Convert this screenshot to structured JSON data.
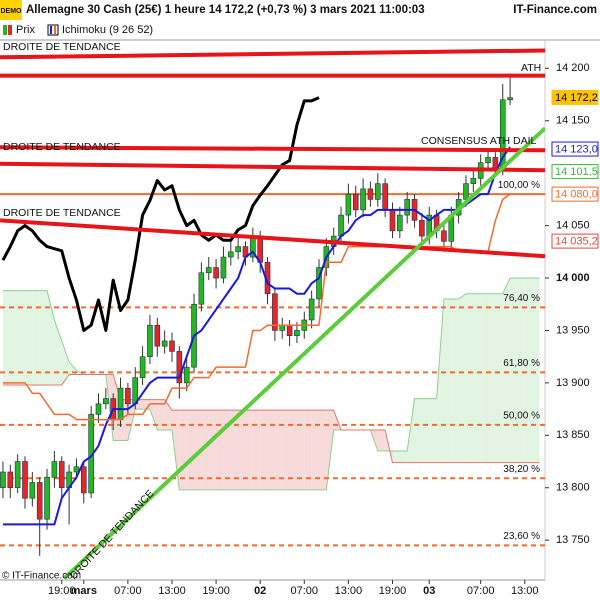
{
  "header": {
    "logo": "DEMO",
    "title": "Allemagne 30 Cash (25€) 1 heure 14 172,2 (+0,73 %) 3 mars 2021 11:00:03",
    "site": "IT-Finance.com"
  },
  "legend": [
    "Prix",
    "Ichimoku (9 26 52)"
  ],
  "chart_data": {
    "type": "candlestick",
    "candles": [
      [
        13800,
        13825,
        13790,
        13815
      ],
      [
        13815,
        13822,
        13790,
        13800
      ],
      [
        13800,
        13832,
        13795,
        13825
      ],
      [
        13825,
        13830,
        13780,
        13790
      ],
      [
        13790,
        13815,
        13782,
        13805
      ],
      [
        13805,
        13810,
        13735,
        13770
      ],
      [
        13770,
        13818,
        13760,
        13810
      ],
      [
        13810,
        13835,
        13800,
        13825
      ],
      [
        13825,
        13830,
        13790,
        13800
      ],
      [
        13800,
        13822,
        13765,
        13815
      ],
      [
        13815,
        13828,
        13808,
        13820
      ],
      [
        13820,
        13825,
        13785,
        13795
      ],
      [
        13795,
        13878,
        13790,
        13870
      ],
      [
        13870,
        13890,
        13862,
        13880
      ],
      [
        13880,
        13895,
        13875,
        13885
      ],
      [
        13885,
        13890,
        13855,
        13865
      ],
      [
        13865,
        13905,
        13858,
        13895
      ],
      [
        13895,
        13900,
        13870,
        13880
      ],
      [
        13880,
        13915,
        13875,
        13905
      ],
      [
        13905,
        13935,
        13898,
        13925
      ],
      [
        13925,
        13965,
        13918,
        13955
      ],
      [
        13955,
        13962,
        13925,
        13935
      ],
      [
        13935,
        13950,
        13928,
        13940
      ],
      [
        13940,
        13948,
        13920,
        13930
      ],
      [
        13930,
        13935,
        13885,
        13900
      ],
      [
        13900,
        13925,
        13892,
        13915
      ],
      [
        13915,
        13985,
        13910,
        13975
      ],
      [
        13975,
        14015,
        13968,
        14005
      ],
      [
        14005,
        14020,
        13998,
        14010
      ],
      [
        14010,
        14018,
        13990,
        14000
      ],
      [
        14000,
        14030,
        13995,
        14020
      ],
      [
        14020,
        14035,
        14012,
        14025
      ],
      [
        14025,
        14038,
        14018,
        14030
      ],
      [
        14030,
        14035,
        14012,
        14020
      ],
      [
        14020,
        14048,
        14015,
        14040
      ],
      [
        14040,
        14045,
        14005,
        14015
      ],
      [
        14015,
        14020,
        13975,
        13985
      ],
      [
        13985,
        13990,
        13940,
        13950
      ],
      [
        13950,
        13962,
        13942,
        13955
      ],
      [
        13955,
        13960,
        13935,
        13945
      ],
      [
        13945,
        13958,
        13938,
        13950
      ],
      [
        13950,
        13968,
        13942,
        13960
      ],
      [
        13960,
        13988,
        13952,
        13980
      ],
      [
        13980,
        14018,
        13972,
        14010
      ],
      [
        14010,
        14038,
        14002,
        14030
      ],
      [
        14030,
        14048,
        14022,
        14040
      ],
      [
        14040,
        14068,
        14032,
        14060
      ],
      [
        14060,
        14090,
        14052,
        14080
      ],
      [
        14080,
        14088,
        14058,
        14065
      ],
      [
        14065,
        14095,
        14058,
        14085
      ],
      [
        14085,
        14092,
        14068,
        14075
      ],
      [
        14075,
        14100,
        14068,
        14090
      ],
      [
        14090,
        14095,
        14058,
        14065
      ],
      [
        14065,
        14072,
        14038,
        14045
      ],
      [
        14045,
        14068,
        14038,
        14060
      ],
      [
        14060,
        14082,
        14052,
        14075
      ],
      [
        14075,
        14080,
        14048,
        14055
      ],
      [
        14055,
        14062,
        14032,
        14040
      ],
      [
        14040,
        14068,
        14032,
        14060
      ],
      [
        14060,
        14065,
        14038,
        14045
      ],
      [
        14045,
        14050,
        14025,
        14035
      ],
      [
        14035,
        14068,
        14028,
        14060
      ],
      [
        14060,
        14082,
        14052,
        14075
      ],
      [
        14075,
        14098,
        14068,
        14090
      ],
      [
        14090,
        14102,
        14082,
        14095
      ],
      [
        14095,
        14118,
        14088,
        14110
      ],
      [
        14110,
        14122,
        14102,
        14115
      ],
      [
        14115,
        14120,
        14098,
        14105
      ],
      [
        14105,
        14185,
        14098,
        14170
      ],
      [
        14170,
        14195,
        14165,
        14172
      ]
    ],
    "up_color": "#22b822",
    "down_color": "#e4262a",
    "lines": [
      {
        "color": "#1a1ad8",
        "width": 2,
        "values": [
          13765,
          13765,
          13765,
          13765,
          13765,
          13765,
          13765,
          13765,
          13790,
          13800,
          13810,
          13825,
          13830,
          13840,
          13860,
          13875,
          13875,
          13875,
          13880,
          13890,
          13900,
          13905,
          13905,
          13905,
          13905,
          13925,
          13945,
          13950,
          13960,
          13970,
          13980,
          13990,
          14000,
          14020,
          14025,
          14015,
          13995,
          13990,
          13990,
          13990,
          13985,
          13985,
          13995,
          14000,
          14020,
          14030,
          14040,
          14045,
          14055,
          14060,
          14060,
          14065,
          14065,
          14065,
          14065,
          14065,
          14065,
          14060,
          14055,
          14060,
          14065,
          14065,
          14065,
          14070,
          14075,
          14080,
          14080,
          14100,
          14115,
          14125
        ]
      },
      {
        "color": "#f26b2e",
        "width": 1.5,
        "values": [
          13900,
          13900,
          13900,
          13900,
          13890,
          13890,
          13880,
          13870,
          13870,
          13870,
          13865,
          13865,
          13865,
          13865,
          13865,
          13865,
          13865,
          13870,
          13870,
          13870,
          13880,
          13880,
          13880,
          13895,
          13895,
          13895,
          13905,
          13905,
          13905,
          13915,
          13915,
          13915,
          13915,
          13915,
          13950,
          13950,
          13955,
          13955,
          13955,
          13955,
          13955,
          13955,
          13955,
          13955,
          14015,
          14015,
          14015,
          14030,
          14030,
          14030,
          14030,
          14030,
          14030,
          14030,
          14030,
          14030,
          14030,
          14030,
          14030,
          14030,
          14030,
          14030,
          14025,
          14025,
          14025,
          14025,
          14025,
          14055,
          14075,
          14080
        ]
      },
      {
        "color": "#000000",
        "width": 3,
        "values": [
          14017,
          14030,
          14045,
          14050,
          14045,
          14036,
          14030,
          14028,
          14026,
          14000,
          13979,
          13950,
          13955,
          13979,
          13950,
          13998,
          13969,
          13979,
          14017,
          14060,
          14074,
          14093,
          14084,
          14088,
          14065,
          14050,
          14055,
          14041,
          14036,
          14041,
          14036,
          14036,
          14046,
          14050,
          14069,
          14079,
          14088,
          14098,
          14108,
          14112,
          14146,
          14169,
          14169,
          14172,
          null,
          null,
          null,
          null,
          null,
          null,
          null,
          null,
          null,
          null,
          null,
          null,
          null,
          null,
          null,
          null,
          null,
          null,
          null,
          null,
          null,
          null,
          null,
          null,
          null,
          null
        ]
      }
    ],
    "cloud": {
      "span_a": [
        13988,
        13988,
        13988,
        13988,
        13988,
        13988,
        13988,
        13960,
        13940,
        13920,
        13912,
        13908,
        13908,
        13908,
        13908,
        13845,
        13845,
        13845,
        13875,
        13875,
        13875,
        13855,
        13855,
        13855,
        13798,
        13798,
        13798,
        13798,
        13798,
        13798,
        13798,
        13798,
        13798,
        13798,
        13798,
        13798,
        13798,
        13798,
        13798,
        13798,
        13798,
        13798,
        13798,
        13798,
        13798,
        13855,
        13855,
        13855,
        13855,
        13855,
        13855,
        13835,
        13835,
        13835,
        13835,
        13835,
        13885,
        13885,
        13885,
        13885,
        13980,
        13980,
        13980,
        13985,
        13985,
        13985,
        13985,
        13985,
        13985,
        14000,
        14000,
        14000,
        14000,
        14000
      ],
      "span_b": [
        13898,
        13898,
        13898,
        13898,
        13898,
        13898,
        13898,
        13898,
        13898,
        13908,
        13908,
        13908,
        13908,
        13908,
        13908,
        13908,
        13884,
        13884,
        13884,
        13884,
        13884,
        13884,
        13884,
        13874,
        13874,
        13874,
        13874,
        13874,
        13874,
        13874,
        13874,
        13874,
        13874,
        13874,
        13874,
        13874,
        13874,
        13874,
        13874,
        13874,
        13874,
        13874,
        13874,
        13874,
        13874,
        13874,
        13855,
        13855,
        13855,
        13855,
        13855,
        13855,
        13855,
        13824,
        13824,
        13824,
        13824,
        13824,
        13824,
        13824,
        13824,
        13824,
        13824,
        13824,
        13824,
        13824,
        13824,
        13824,
        13824,
        13824,
        13824,
        13824,
        13824,
        13824
      ],
      "a_color": "#8fd08f",
      "b_color": "#e07a6a",
      "up_fill": "#e2f4e2",
      "down_fill": "#f7dada"
    },
    "trendlines": [
      {
        "x": [
          -0.4,
          73.75
        ],
        "y": [
          14210.5,
          14217
        ],
        "color": "#e8141a",
        "width": 4
      },
      {
        "x": [
          -0.4,
          73.75
        ],
        "y": [
          14193,
          14193
        ],
        "color": "#e8141a",
        "width": 4
      },
      {
        "x": [
          -0.4,
          73.75
        ],
        "y": [
          14124.7,
          14121.8
        ],
        "color": "#e8141a",
        "width": 4
      },
      {
        "x": [
          -0.4,
          73.75
        ],
        "y": [
          14109,
          14102.8
        ],
        "color": "#e8141a",
        "width": 4
      },
      {
        "x": [
          -0.4,
          73.75
        ],
        "y": [
          14055,
          14020.8
        ],
        "color": "#e8141a",
        "width": 4
      },
      {
        "x": [
          8.4,
          73.75
        ],
        "y": [
          13714,
          14142.8
        ],
        "color": "#5ccc3c",
        "width": 4
      }
    ],
    "fib": [
      {
        "value": 14080,
        "label": "100,00 %",
        "style": "solid"
      },
      {
        "value": 13972,
        "label": "76,40 %",
        "style": "dashed"
      },
      {
        "value": 13910,
        "label": "61,80 %",
        "style": "dashed"
      },
      {
        "value": 13860,
        "label": "50,00 %",
        "style": "dashed"
      },
      {
        "value": 13809,
        "label": "38,20 %",
        "style": "dashed"
      },
      {
        "value": 13745,
        "label": "23,60 %",
        "style": "dashed"
      }
    ],
    "fib_color": "#f26b2e",
    "price_labels": [
      {
        "value": 14172.2,
        "label": "14 172,2",
        "color": "#ffc400"
      },
      {
        "value": 14123,
        "label": "14 123,0",
        "color": "#1a1ad8"
      },
      {
        "value": 14101.5,
        "label": "14 101,5",
        "color": "#3bb83b"
      },
      {
        "value": 14080,
        "label": "14 080,0",
        "color": "#f26b2e"
      },
      {
        "value": 14035.2,
        "label": "14 035,2",
        "color": "#e04a3a"
      }
    ],
    "annotations": [
      "DROITE DE TENDANCE",
      "DROITE DE TENDANCE",
      "DROITE DE TENDANCE",
      "DROITE DE TENDANCE",
      "ATH",
      "CONSENSUS ATH DAIL"
    ],
    "xlim": [
      -0.4,
      73.75
    ],
    "ylim": [
      13712,
      14227
    ],
    "yticks": [
      {
        "value": 13750,
        "label": "13 750"
      },
      {
        "value": 13800,
        "label": "13 800"
      },
      {
        "value": 13850,
        "label": "13 850"
      },
      {
        "value": 13900,
        "label": "13 900"
      },
      {
        "value": 13950,
        "label": "13 950"
      },
      {
        "value": 14000,
        "label": "14 000",
        "bold": true
      },
      {
        "value": 14050,
        "label": "14 050"
      },
      {
        "value": 14150,
        "label": "14 150"
      },
      {
        "value": 14200,
        "label": "14 200"
      }
    ],
    "xticks": [
      {
        "value": 8,
        "label": "19:00"
      },
      {
        "value": 11,
        "label": "mars",
        "bold": true
      },
      {
        "value": 17,
        "label": "07:00"
      },
      {
        "value": 23,
        "label": "13:00"
      },
      {
        "value": 29,
        "label": "19:00"
      },
      {
        "value": 35,
        "label": "02",
        "bold": true
      },
      {
        "value": 41,
        "label": "07:00"
      },
      {
        "value": 47,
        "label": "13:00"
      },
      {
        "value": 53,
        "label": "19:00"
      },
      {
        "value": 58,
        "label": "03",
        "bold": true
      },
      {
        "value": 65,
        "label": "07:00"
      },
      {
        "value": 71,
        "label": "13:00"
      }
    ],
    "copyright": "© IT-Finance.com"
  }
}
